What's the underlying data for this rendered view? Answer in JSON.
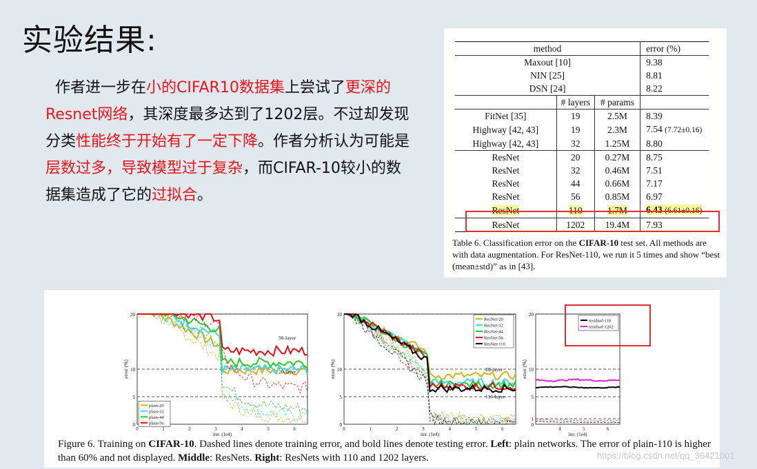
{
  "slide": {
    "title": "实验结果:",
    "paragraph": [
      {
        "text": "作者进一步在",
        "hl": false
      },
      {
        "text": "小的CIFAR10数据集",
        "hl": true
      },
      {
        "text": "上尝试了",
        "hl": false
      },
      {
        "text": "更深的Resnet网络",
        "hl": true
      },
      {
        "text": "，其深度最多达到了1202层。不过却发现分类",
        "hl": false
      },
      {
        "text": "性能终于开始有了一定下降",
        "hl": true
      },
      {
        "text": "。作者分析认为可能是",
        "hl": false
      },
      {
        "text": "层数过多，导致模型过于复杂",
        "hl": true
      },
      {
        "text": "，而CIFAR-10较小的数据集造成了它的",
        "hl": false
      },
      {
        "text": "过拟合",
        "hl": true
      },
      {
        "text": "。",
        "hl": false
      }
    ]
  },
  "table": {
    "header": {
      "method": "method",
      "error": "error (%)"
    },
    "group1": [
      {
        "method": "Maxout [10]",
        "error": "9.38"
      },
      {
        "method": "NIN [25]",
        "error": "8.81"
      },
      {
        "method": "DSN [24]",
        "error": "8.22"
      }
    ],
    "subheader": {
      "layers": "# layers",
      "params": "# params"
    },
    "group2": [
      {
        "method": "FitNet [35]",
        "layers": "19",
        "params": "2.5M",
        "error": "8.39",
        "std": ""
      },
      {
        "method": "Highway [42, 43]",
        "layers": "19",
        "params": "2.3M",
        "error": "7.54",
        "std": "(7.72±0.16)"
      },
      {
        "method": "Highway [42, 43]",
        "layers": "32",
        "params": "1.25M",
        "error": "8.80",
        "std": ""
      }
    ],
    "group3": [
      {
        "method": "ResNet",
        "layers": "20",
        "params": "0.27M",
        "error": "8.75",
        "std": ""
      },
      {
        "method": "ResNet",
        "layers": "32",
        "params": "0.46M",
        "error": "7.51",
        "std": ""
      },
      {
        "method": "ResNet",
        "layers": "44",
        "params": "0.66M",
        "error": "7.17",
        "std": ""
      },
      {
        "method": "ResNet",
        "layers": "56",
        "params": "0.85M",
        "error": "6.97",
        "std": ""
      },
      {
        "method": "ResNet",
        "layers": "110",
        "params": "1.7M",
        "error": "6.43",
        "std": "(6.61±0.16)"
      },
      {
        "method": "ResNet",
        "layers": "1202",
        "params": "19.4M",
        "error": "7.93",
        "std": ""
      }
    ],
    "caption": {
      "prefix": "Table 6. Classification error on the ",
      "bold": "CIFAR-10",
      "rest": " test set. All methods are with data augmentation. For ResNet-110, we run it 5 times and show “best (mean±std)” as in [43]."
    }
  },
  "figure": {
    "caption_html_parts": [
      {
        "t": "Figure 6. Training on ",
        "b": false
      },
      {
        "t": "CIFAR-10",
        "b": true
      },
      {
        "t": ". Dashed lines denote training error, and bold lines denote testing error. ",
        "b": false
      },
      {
        "t": "Left",
        "b": true
      },
      {
        "t": ": plain networks. The error of plain-110 is higher than 60% and not displayed. ",
        "b": false
      },
      {
        "t": "Middle",
        "b": true
      },
      {
        "t": ": ResNets. ",
        "b": false
      },
      {
        "t": "Right",
        "b": true
      },
      {
        "t": ": ResNets with 110 and 1202 layers.",
        "b": false
      }
    ],
    "plots": [
      {
        "name": "left",
        "ylabel": "error (%)",
        "xlabel": "iter. (1e4)",
        "yticks": [
          "0",
          "5",
          "10",
          "20"
        ],
        "xticks": [
          "0",
          "1",
          "2",
          "3",
          "4",
          "5",
          "6"
        ],
        "annotations": [
          "56-layer",
          "20-layer"
        ],
        "legend": [
          "plain-20",
          "plain-32",
          "plain-44",
          "plain-56"
        ]
      },
      {
        "name": "middle",
        "ylabel": "error (%)",
        "xlabel": "iter. (1e4)",
        "yticks": [
          "0",
          "5",
          "10",
          "20"
        ],
        "xticks": [
          "0",
          "1",
          "2",
          "3",
          "4",
          "5",
          "6"
        ],
        "annotations": [
          "20-layer",
          "110-layer"
        ],
        "legend": [
          "ResNet-20",
          "ResNet-32",
          "ResNet-44",
          "ResNet-56",
          "ResNet-110"
        ]
      },
      {
        "name": "right",
        "ylabel": "error (%)",
        "xlabel": "iter. (1e4)",
        "yticks": [
          "0",
          "1",
          "5",
          "10",
          "20"
        ],
        "xticks": [
          "4",
          "5",
          "6"
        ],
        "annotations": [],
        "legend": [
          "residual-110",
          "residual-1202"
        ]
      }
    ],
    "colors": {
      "yellow": "#d6b21a",
      "cyan": "#3fd8ee",
      "green": "#2ec52e",
      "red": "#e0101a",
      "black": "#000000",
      "magenta": "#e020e0"
    }
  },
  "watermark": "https://blog.csdn.net/qq_36421001"
}
